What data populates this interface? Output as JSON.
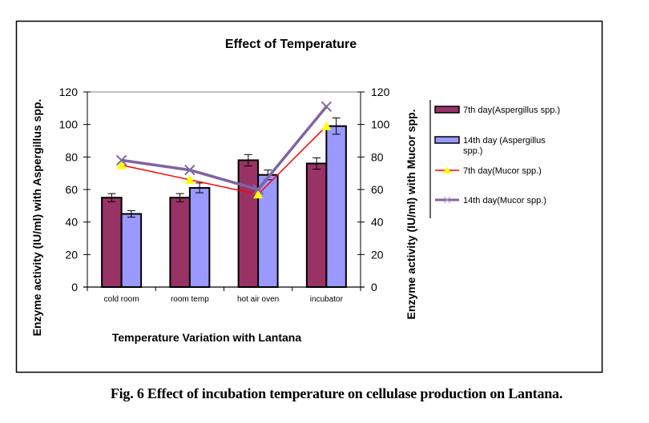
{
  "caption": "Fig. 6 Effect of incubation temperature on cellulase production on Lantana.",
  "chart_data": {
    "type": "bar",
    "title": "Effect of Temperature",
    "xlabel": "Temperature Variation with Lantana",
    "ylabel": "Enzyme activity (IU/ml) with Aspergillus spp.",
    "y2label": "Enzyme activity (IU/ml) with Mucor spp.",
    "ylim": [
      0,
      120
    ],
    "y2lim": [
      0,
      120
    ],
    "yticks": [
      0,
      20,
      40,
      60,
      80,
      100,
      120
    ],
    "y2ticks": [
      0,
      20,
      40,
      60,
      80,
      100,
      120
    ],
    "grid": false,
    "legend_position": "right",
    "categories": [
      "cold room",
      "room temp",
      "hot air oven",
      "incubator"
    ],
    "series": [
      {
        "name": "7th day(Aspergillus spp.)",
        "type": "bar",
        "axis": "left",
        "color": "#993366",
        "values": [
          55,
          55,
          78,
          76
        ],
        "errors": [
          2.5,
          2.5,
          3.5,
          3.5
        ]
      },
      {
        "name": "14th day (Aspergillus spp.)",
        "type": "bar",
        "axis": "left",
        "color": "#9999ff",
        "values": [
          45,
          61,
          69,
          99
        ],
        "errors": [
          2,
          3,
          3,
          5
        ]
      },
      {
        "name": "7th day(Mucor spp.)",
        "type": "line",
        "axis": "right",
        "color": "#ff0000",
        "marker": "triangle",
        "marker_color": "#ffff00",
        "values": [
          75,
          66,
          57,
          99
        ]
      },
      {
        "name": "14th day(Mucor spp.)",
        "type": "line",
        "axis": "right",
        "color": "#8064a2",
        "marker": "x",
        "values": [
          78,
          72,
          60,
          111
        ]
      }
    ]
  }
}
